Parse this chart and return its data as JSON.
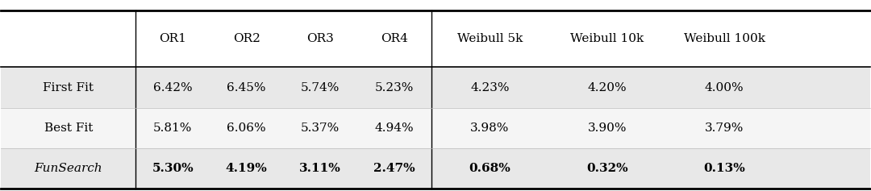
{
  "col_headers": [
    "",
    "OR1",
    "OR2",
    "OR3",
    "OR4",
    "Weibull 5k",
    "Weibull 10k",
    "Weibull 100k"
  ],
  "rows": [
    {
      "label": "First Fit",
      "italic": false,
      "bold_data": false,
      "values": [
        "6.42%",
        "6.45%",
        "5.74%",
        "5.23%",
        "4.23%",
        "4.20%",
        "4.00%"
      ]
    },
    {
      "label": "Best Fit",
      "italic": false,
      "bold_data": false,
      "values": [
        "5.81%",
        "6.06%",
        "5.37%",
        "4.94%",
        "3.98%",
        "3.90%",
        "3.79%"
      ]
    },
    {
      "label": "FunSearch",
      "italic": true,
      "bold_data": true,
      "values": [
        "5.30%",
        "4.19%",
        "3.11%",
        "2.47%",
        "0.68%",
        "0.32%",
        "0.13%"
      ]
    }
  ],
  "bg_color_odd": "#e8e8e8",
  "bg_color_even": "#f5f5f5",
  "bg_color_header": "#ffffff",
  "fig_width": 10.8,
  "fig_height": 2.37
}
